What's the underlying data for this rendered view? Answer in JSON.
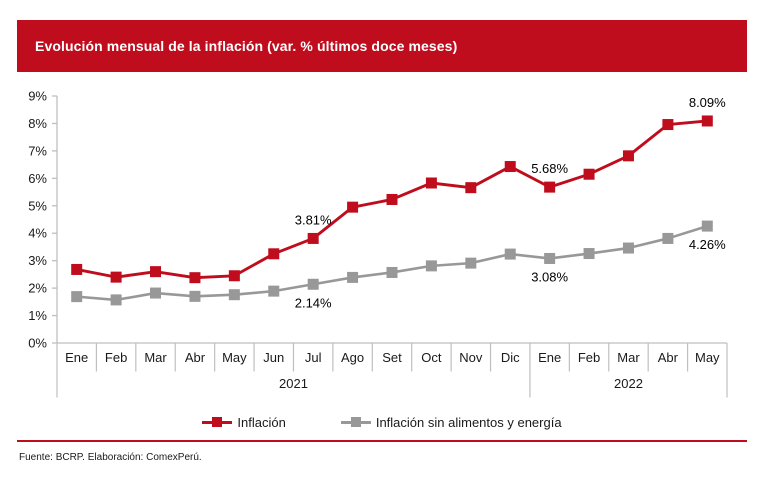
{
  "header": {
    "title": "Evolución mensual de la inflación (var. % últimos doce meses)",
    "bar_color": "#C00D1D",
    "text_color": "#FFFFFF"
  },
  "footer": {
    "text": "Fuente: BCRP. Elaboración: ComexPerú."
  },
  "legend": {
    "items": [
      {
        "label": "Inflación",
        "color": "#C00D1D"
      },
      {
        "label": "Inflación sin alimentos y energía",
        "color": "#989898"
      }
    ]
  },
  "chart_data": {
    "type": "line",
    "title": "Evolución mensual de la inflación (var. % últimos doce meses)",
    "categories": [
      "Ene",
      "Feb",
      "Mar",
      "Abr",
      "May",
      "Jun",
      "Jul",
      "Ago",
      "Set",
      "Oct",
      "Nov",
      "Dic",
      "Ene",
      "Feb",
      "Mar",
      "Abr",
      "May"
    ],
    "year_groups": [
      {
        "label": "2021",
        "months": 12
      },
      {
        "label": "2022",
        "months": 5
      }
    ],
    "series": [
      {
        "name": "Inflación",
        "color": "#C00D1D",
        "marker": "square",
        "values": [
          2.68,
          2.4,
          2.6,
          2.38,
          2.45,
          3.25,
          3.81,
          4.95,
          5.23,
          5.83,
          5.66,
          6.43,
          5.68,
          6.15,
          6.82,
          7.96,
          8.09
        ]
      },
      {
        "name": "Inflación sin alimentos y energía",
        "color": "#989898",
        "marker": "square",
        "values": [
          1.69,
          1.57,
          1.82,
          1.7,
          1.76,
          1.89,
          2.14,
          2.39,
          2.57,
          2.81,
          2.91,
          3.24,
          3.08,
          3.26,
          3.46,
          3.81,
          4.26
        ]
      }
    ],
    "annotations": [
      {
        "series": 0,
        "index": 6,
        "text": "3.81%",
        "placement": "above"
      },
      {
        "series": 0,
        "index": 12,
        "text": "5.68%",
        "placement": "above"
      },
      {
        "series": 0,
        "index": 16,
        "text": "8.09%",
        "placement": "above"
      },
      {
        "series": 1,
        "index": 6,
        "text": "2.14%",
        "placement": "below"
      },
      {
        "series": 1,
        "index": 12,
        "text": "3.08%",
        "placement": "below"
      },
      {
        "series": 1,
        "index": 16,
        "text": "4.26%",
        "placement": "below"
      }
    ],
    "ylim": [
      0,
      9
    ],
    "ytick_step": 1,
    "yticks": [
      "0%",
      "1%",
      "2%",
      "3%",
      "4%",
      "5%",
      "6%",
      "7%",
      "8%",
      "9%"
    ],
    "grid": false,
    "legend_position": "bottom",
    "axis_color": "#BFBFBF",
    "label_color": "#1A1A1A"
  }
}
